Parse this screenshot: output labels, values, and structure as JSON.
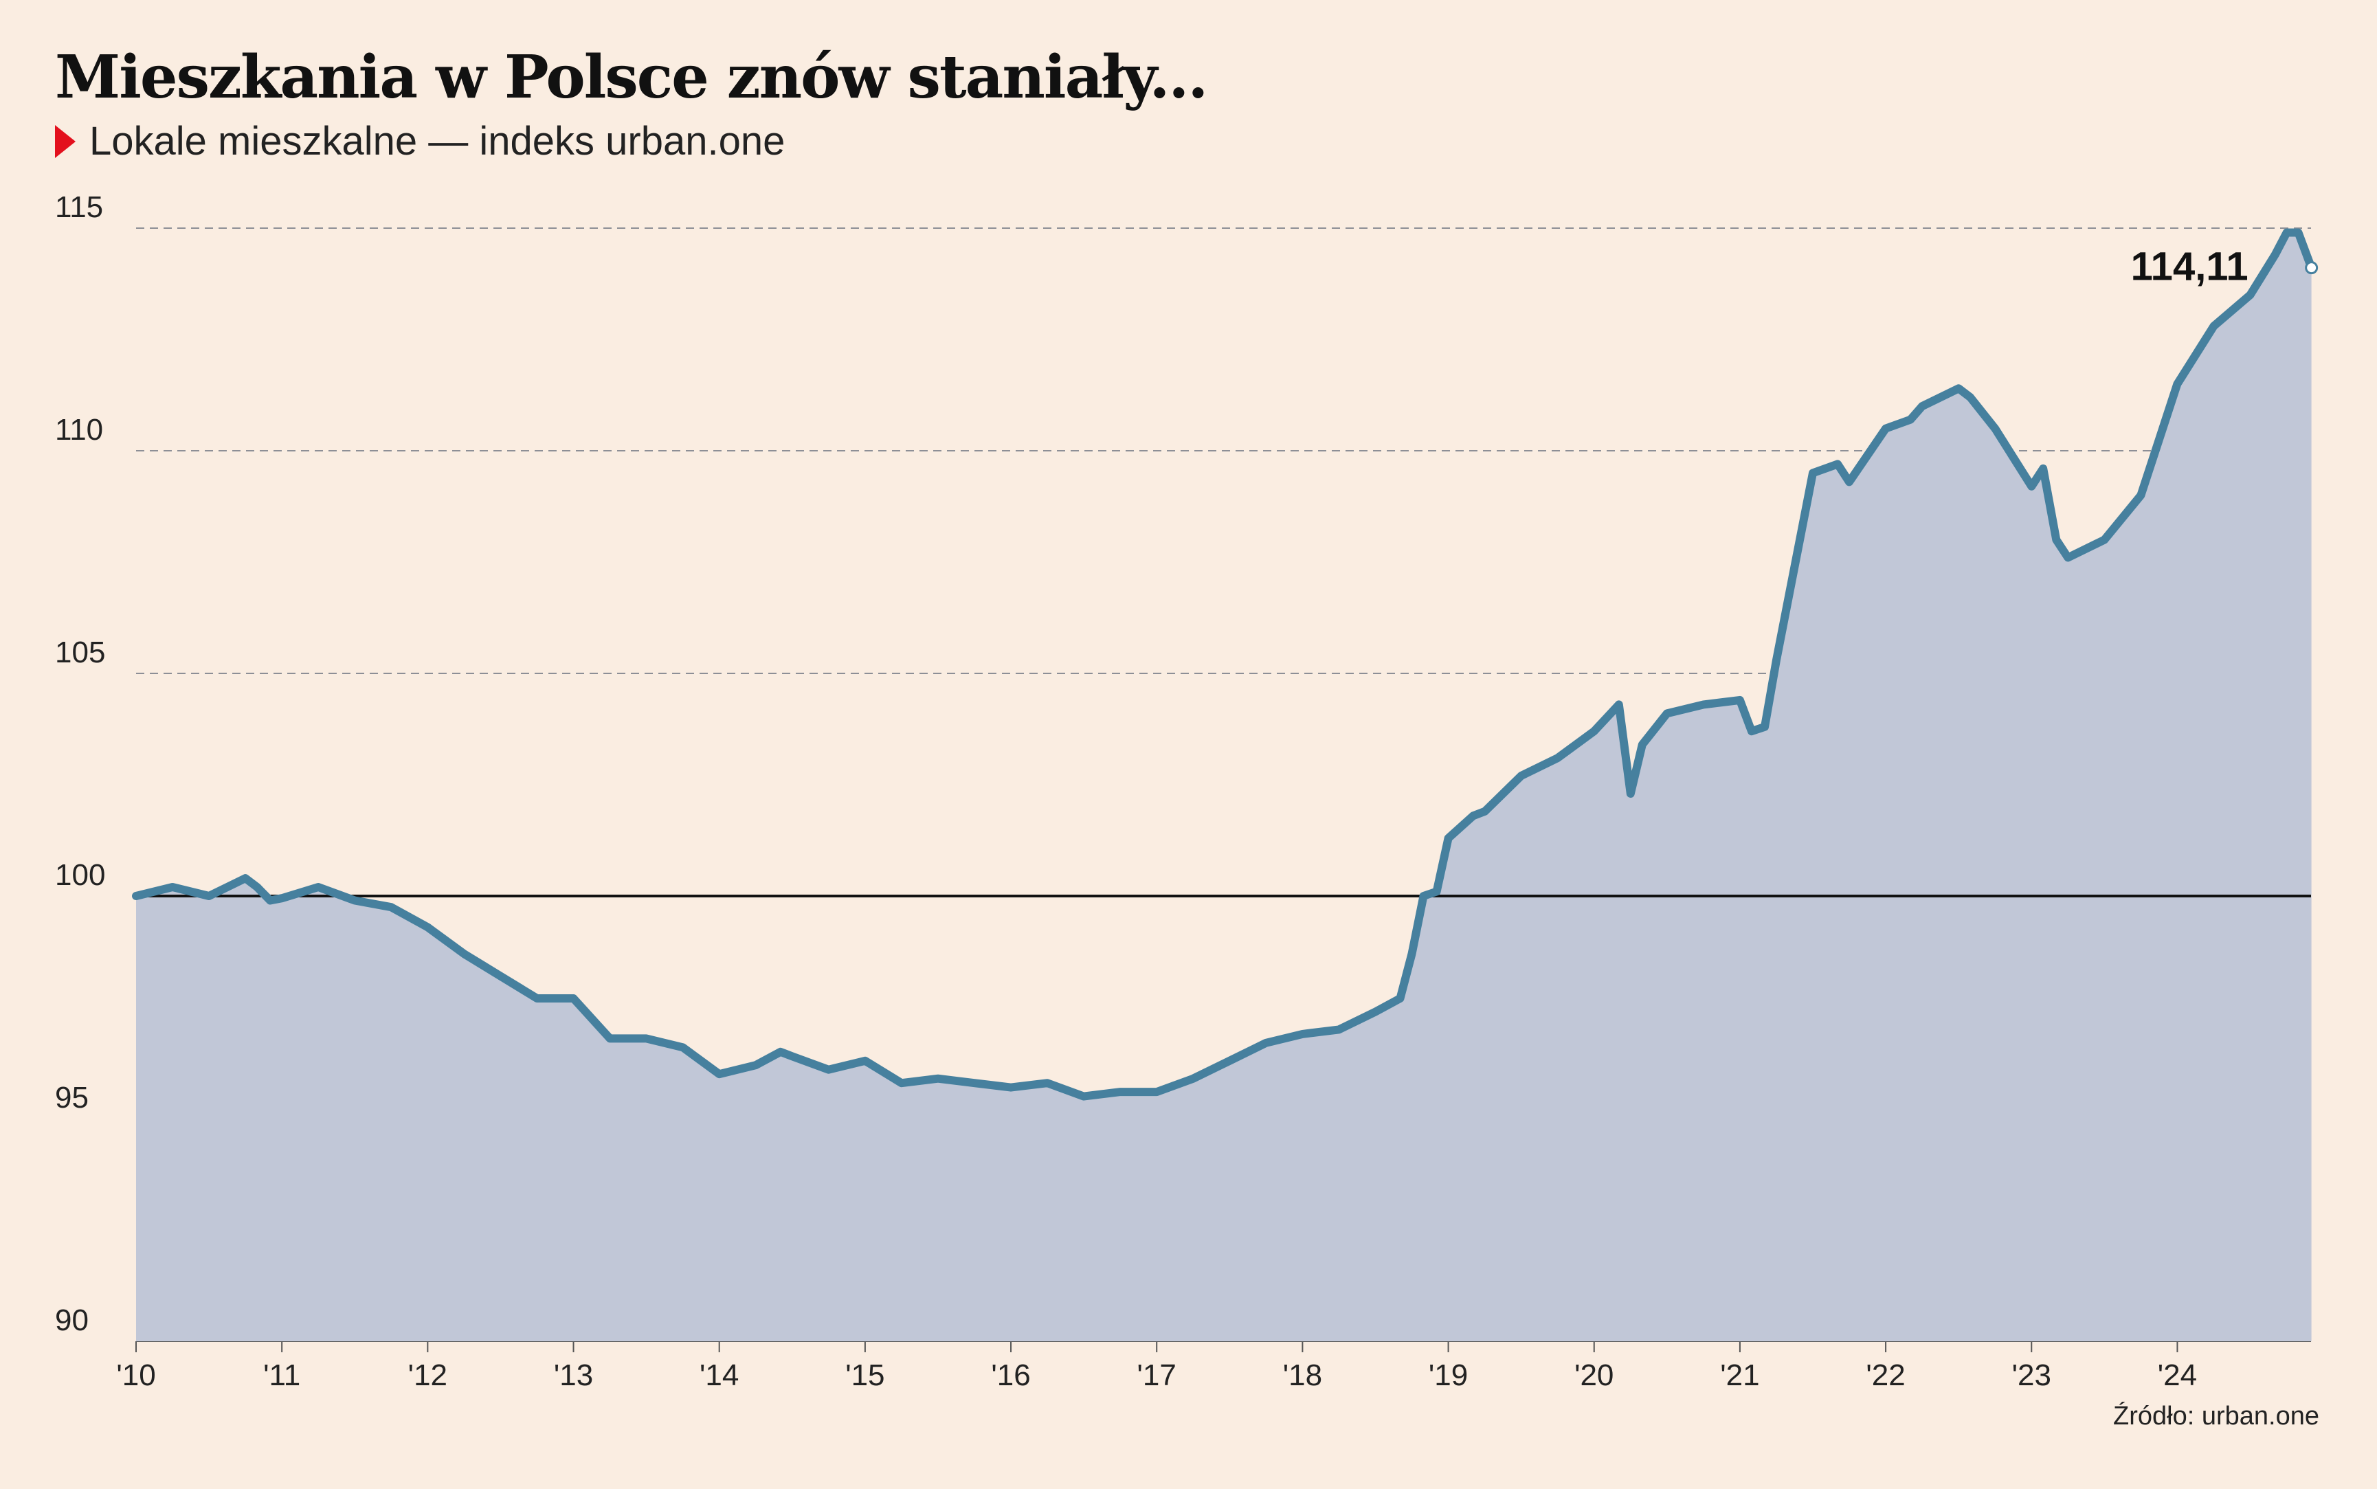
{
  "header": {
    "title": "Mieszkania w Polsce znów staniały...",
    "subtitle": "Lokale mieszkalne — indeks urban.one"
  },
  "source": "Źródło: urban.one",
  "colors": {
    "background": "#faede1",
    "line": "#46809e",
    "area": "#c1c7d7",
    "marker": "#e3101d",
    "reference": "#111111",
    "grid": "#8d8f96"
  },
  "chart_data": {
    "type": "area",
    "title": "",
    "xlabel": "",
    "ylabel": "",
    "xlim": [
      2010,
      2024.917
    ],
    "ylim": [
      90,
      115
    ],
    "y_ticks": [
      90,
      95,
      100,
      105,
      110,
      115
    ],
    "y_tick_labels": [
      "90",
      "95",
      "100",
      "105",
      "110",
      "115"
    ],
    "x_ticks": [
      2010,
      2011,
      2012,
      2013,
      2014,
      2015,
      2016,
      2017,
      2018,
      2019,
      2020,
      2021,
      2022,
      2023,
      2024
    ],
    "x_tick_labels": [
      "'10",
      "'11",
      "'12",
      "'13",
      "'14",
      "'15",
      "'16",
      "'17",
      "'18",
      "'19",
      "'20",
      "'21",
      "'22",
      "'23",
      "'24"
    ],
    "reference_line": 100,
    "grid": "dashed horizontal",
    "series": [
      {
        "x": [
          2010.0,
          2010.25,
          2010.5,
          2010.75,
          2010.83,
          2010.92,
          2011.0,
          2011.25,
          2011.5,
          2011.75,
          2012.0,
          2012.25,
          2012.5,
          2012.75,
          2013.0,
          2013.25,
          2013.5,
          2013.75,
          2014.0,
          2014.25,
          2014.42,
          2014.5,
          2014.75,
          2015.0,
          2015.25,
          2015.5,
          2015.75,
          2016.0,
          2016.25,
          2016.5,
          2016.75,
          2017.0,
          2017.25,
          2017.5,
          2017.75,
          2018.0,
          2018.25,
          2018.5,
          2018.67,
          2018.75,
          2018.83,
          2018.92,
          2019.0,
          2019.17,
          2019.25,
          2019.5,
          2019.75,
          2020.0,
          2020.17,
          2020.25,
          2020.33,
          2020.5,
          2020.75,
          2021.0,
          2021.08,
          2021.17,
          2021.25,
          2021.5,
          2021.67,
          2021.75,
          2022.0,
          2022.17,
          2022.25,
          2022.5,
          2022.58,
          2022.75,
          2023.0,
          2023.08,
          2023.17,
          2023.25,
          2023.5,
          2023.75,
          2024.0,
          2024.25,
          2024.5,
          2024.67,
          2024.75,
          2024.83,
          2024.92
        ],
        "values": [
          100.0,
          100.2,
          100.0,
          100.4,
          100.2,
          99.9,
          99.95,
          100.2,
          99.9,
          99.75,
          99.3,
          98.7,
          98.2,
          97.7,
          97.7,
          96.8,
          96.8,
          96.6,
          96.0,
          96.2,
          96.5,
          96.4,
          96.1,
          96.3,
          95.8,
          95.9,
          95.8,
          95.7,
          95.8,
          95.5,
          95.6,
          95.6,
          95.9,
          96.3,
          96.7,
          96.9,
          97.0,
          97.4,
          97.7,
          98.7,
          100.0,
          100.1,
          101.3,
          101.8,
          101.9,
          102.7,
          103.1,
          103.7,
          104.3,
          102.3,
          103.4,
          104.1,
          104.3,
          104.4,
          103.7,
          103.8,
          105.3,
          109.5,
          109.7,
          109.3,
          110.5,
          110.7,
          111.0,
          111.4,
          111.2,
          110.5,
          109.2,
          109.6,
          108.0,
          107.6,
          108.0,
          109.0,
          111.5,
          112.8,
          113.5,
          114.4,
          114.9,
          114.9,
          114.11
        ]
      }
    ],
    "annotations": [
      {
        "x": 2024.92,
        "y": 114.11,
        "text": "114,11"
      }
    ]
  }
}
